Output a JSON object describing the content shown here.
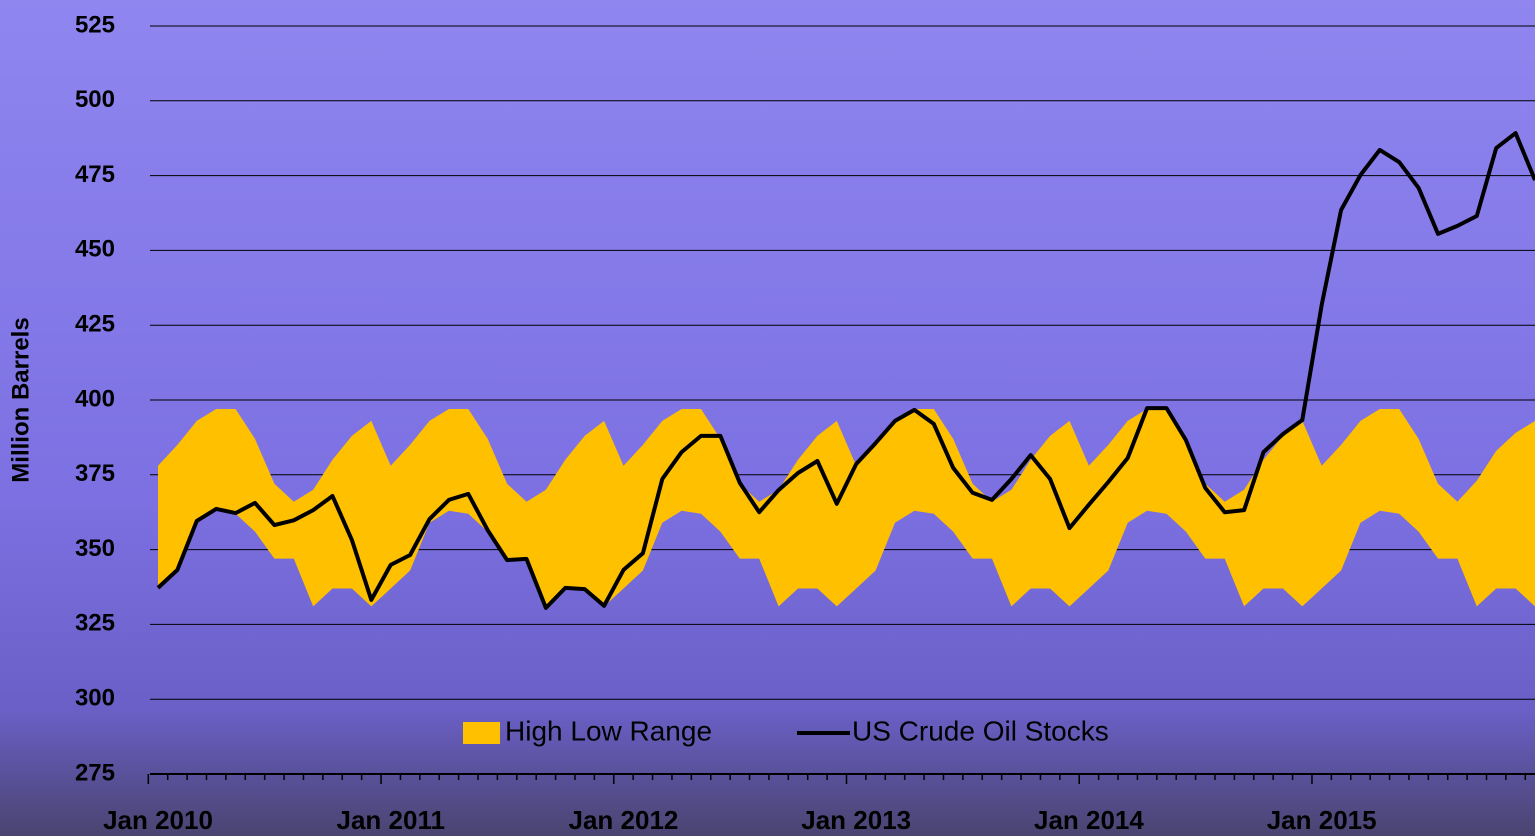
{
  "chart_data": {
    "type": "line",
    "y_label": "Million Barrels",
    "categories": [
      "Jan 2010",
      null,
      null,
      null,
      null,
      null,
      null,
      null,
      null,
      null,
      null,
      null,
      "Jan 2011",
      null,
      null,
      null,
      null,
      null,
      null,
      null,
      null,
      null,
      null,
      null,
      "Jan 2012",
      null,
      null,
      null,
      null,
      null,
      null,
      null,
      null,
      null,
      null,
      null,
      "Jan 2013",
      null,
      null,
      null,
      null,
      null,
      null,
      null,
      null,
      null,
      null,
      null,
      "Jan 2014",
      null,
      null,
      null,
      null,
      null,
      null,
      null,
      null,
      null,
      null,
      null,
      "Jan 2015",
      null,
      null,
      null,
      null,
      null,
      null,
      null,
      null,
      null,
      null,
      null
    ],
    "series": [
      {
        "name": "High Low Range",
        "color": "#ffc000",
        "high": [
          378,
          385,
          393,
          397,
          397,
          387,
          372,
          366,
          370,
          380,
          388,
          393,
          378,
          385,
          393,
          397,
          397,
          387,
          372,
          366,
          370,
          380,
          388,
          393,
          378,
          385,
          393,
          397,
          397,
          387,
          372,
          366,
          370,
          380,
          388,
          393,
          378,
          385,
          393,
          397,
          397,
          387,
          372,
          366,
          370,
          380,
          388,
          393,
          378,
          385,
          393,
          397,
          397,
          387,
          372,
          366,
          370,
          380,
          388,
          393,
          378,
          385,
          393,
          397,
          397,
          387,
          372,
          366,
          373,
          383,
          389,
          393
        ],
        "low": [
          337,
          343,
          359,
          363,
          362,
          356,
          347,
          347,
          331,
          337,
          337,
          331,
          337,
          343,
          359,
          363,
          362,
          356,
          347,
          347,
          331,
          337,
          337,
          331,
          337,
          343,
          359,
          363,
          362,
          356,
          347,
          347,
          331,
          337,
          337,
          331,
          337,
          343,
          359,
          363,
          362,
          356,
          347,
          347,
          331,
          337,
          337,
          331,
          337,
          343,
          359,
          363,
          362,
          356,
          347,
          347,
          331,
          337,
          337,
          331,
          337,
          343,
          359,
          363,
          362,
          356,
          347,
          347,
          331,
          337,
          337,
          331
        ]
      },
      {
        "name": "US Crude Oil Stocks",
        "color": "#000000",
        "values": [
          337.2,
          343.2,
          359.6,
          363.6,
          362.2,
          365.6,
          358.2,
          359.8,
          363.2,
          367.9,
          353.2,
          333.2,
          344.9,
          348.2,
          360.2,
          366.6,
          368.6,
          356.5,
          346.5,
          346.9,
          330.5,
          337.2,
          336.8,
          331.2,
          343.2,
          348.8,
          373.6,
          382.6,
          388,
          388,
          372.3,
          362.5,
          369.9,
          375.6,
          379.6,
          365.3,
          378.6,
          385.6,
          393,
          396.7,
          392,
          377.3,
          369,
          366.6,
          373.6,
          381.6,
          373.6,
          357.2,
          365,
          372.6,
          380.6,
          397.3,
          397.3,
          386.6,
          370.6,
          362.5,
          363.2,
          382.6,
          388.6,
          393.3,
          431.8,
          463.5,
          475.2,
          483.6,
          479.5,
          470.9,
          455.5,
          458.2,
          461.5,
          484.2,
          489.2,
          473.5
        ]
      }
    ],
    "ylim": [
      275,
      525
    ],
    "yticks": [
      275,
      300,
      325,
      350,
      375,
      400,
      425,
      450,
      475,
      500,
      525
    ],
    "grid": true,
    "legend": "bottom"
  }
}
